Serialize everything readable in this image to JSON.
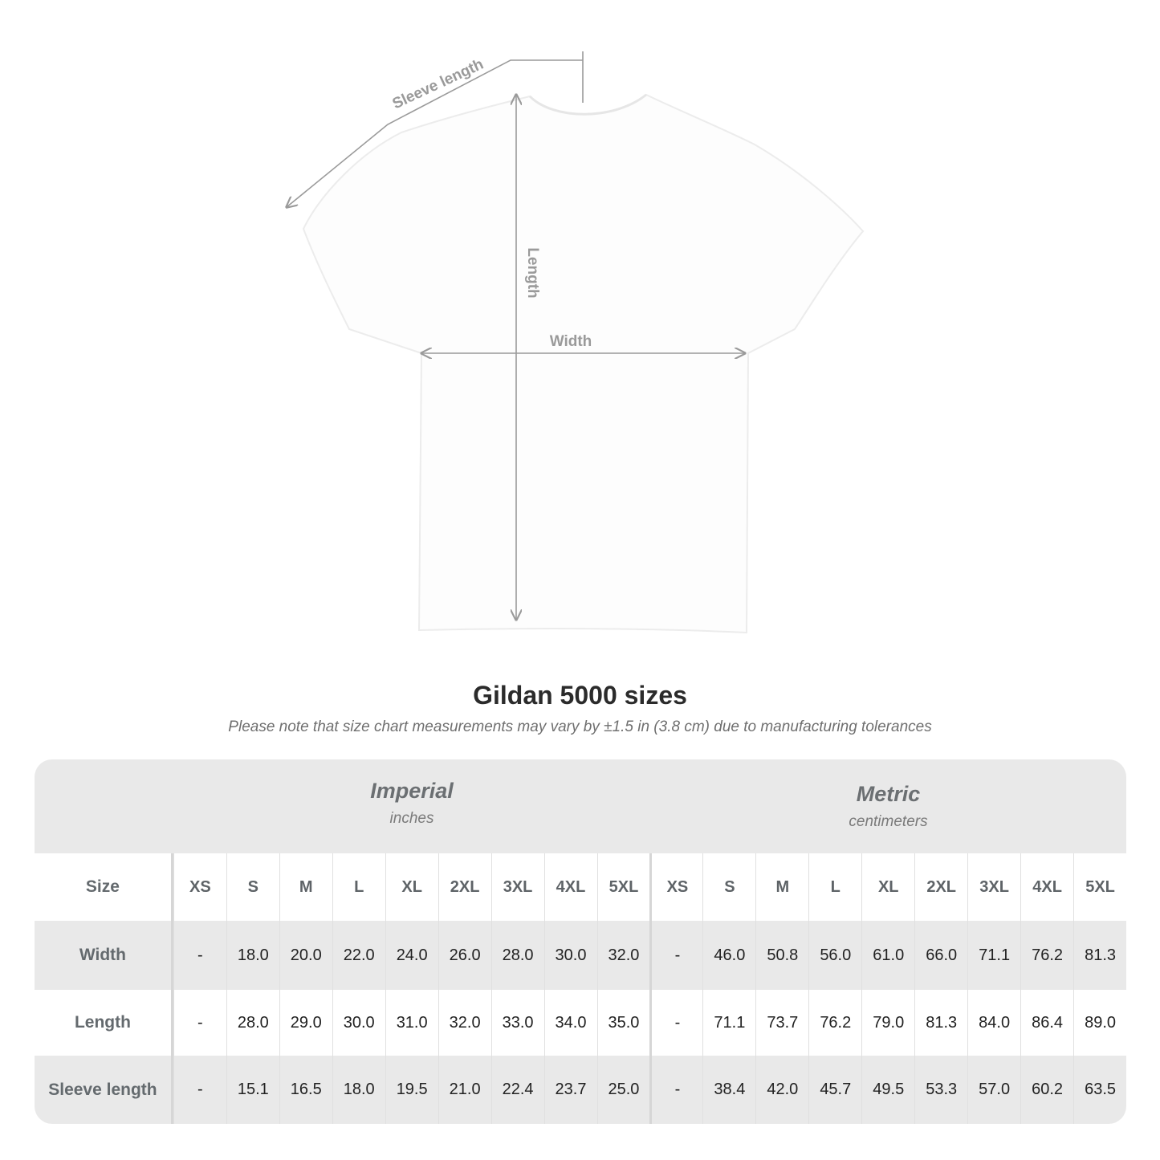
{
  "diagram": {
    "sleeve_label": "Sleeve length",
    "length_label": "Length",
    "width_label": "Width",
    "line_color": "#9a9a9a"
  },
  "title": "Gildan 5000 sizes",
  "note": "Please note that size chart measurements may vary by ±1.5 in (3.8 cm) due to manufacturing tolerances",
  "table": {
    "imperial": {
      "name": "Imperial",
      "unit": "inches"
    },
    "metric": {
      "name": "Metric",
      "unit": "centimeters"
    },
    "size_label": "Size",
    "sizes": [
      "XS",
      "S",
      "M",
      "L",
      "XL",
      "2XL",
      "3XL",
      "4XL",
      "5XL"
    ],
    "rows": [
      {
        "label": "Width",
        "imperial": [
          "-",
          "18.0",
          "20.0",
          "22.0",
          "24.0",
          "26.0",
          "28.0",
          "30.0",
          "32.0"
        ],
        "metric": [
          "-",
          "46.0",
          "50.8",
          "56.0",
          "61.0",
          "66.0",
          "71.1",
          "76.2",
          "81.3"
        ]
      },
      {
        "label": "Length",
        "imperial": [
          "-",
          "28.0",
          "29.0",
          "30.0",
          "31.0",
          "32.0",
          "33.0",
          "34.0",
          "35.0"
        ],
        "metric": [
          "-",
          "71.1",
          "73.7",
          "76.2",
          "79.0",
          "81.3",
          "84.0",
          "86.4",
          "89.0"
        ]
      },
      {
        "label": "Sleeve length",
        "imperial": [
          "-",
          "15.1",
          "16.5",
          "18.0",
          "19.5",
          "21.0",
          "22.4",
          "23.7",
          "25.0"
        ],
        "metric": [
          "-",
          "38.4",
          "42.0",
          "45.7",
          "49.5",
          "53.3",
          "57.0",
          "60.2",
          "63.5"
        ]
      }
    ]
  }
}
